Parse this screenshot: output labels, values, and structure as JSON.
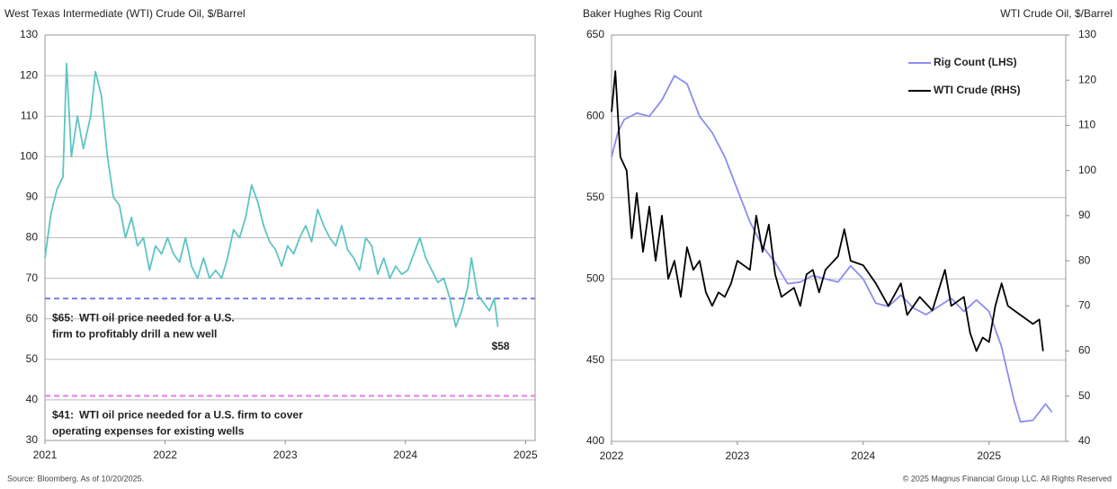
{
  "chart_data": [
    {
      "type": "line",
      "title": "West Texas Intermediate (WTI) Crude Oil, $/Barrel",
      "xlim": [
        2021,
        2025.08
      ],
      "xticks": [
        2021,
        2022,
        2023,
        2024,
        2025
      ],
      "ylim": [
        30,
        130
      ],
      "yticks": [
        30,
        40,
        50,
        60,
        70,
        80,
        90,
        100,
        110,
        120,
        130
      ],
      "grid": true,
      "series": [
        {
          "name": "WTI Crude",
          "color": "#5ec4c4",
          "x": [
            2021.0,
            2021.05,
            2021.1,
            2021.15,
            2021.18,
            2021.22,
            2021.27,
            2021.32,
            2021.38,
            2021.42,
            2021.47,
            2021.52,
            2021.57,
            2021.62,
            2021.67,
            2021.72,
            2021.77,
            2021.82,
            2021.87,
            2021.92,
            2021.97,
            2022.02,
            2022.07,
            2022.12,
            2022.17,
            2022.22,
            2022.27,
            2022.32,
            2022.37,
            2022.42,
            2022.47,
            2022.52,
            2022.57,
            2022.62,
            2022.67,
            2022.72,
            2022.77,
            2022.82,
            2022.87,
            2022.92,
            2022.97,
            2023.02,
            2023.07,
            2023.12,
            2023.17,
            2023.22,
            2023.27,
            2023.32,
            2023.37,
            2023.42,
            2023.47,
            2023.52,
            2023.57,
            2023.62,
            2023.67,
            2023.72,
            2023.77,
            2023.82,
            2023.87,
            2023.92,
            2023.97,
            2024.02,
            2024.07,
            2024.12,
            2024.17,
            2024.22,
            2024.27,
            2024.32,
            2024.37,
            2024.42,
            2024.47,
            2024.52,
            2024.55,
            2024.6,
            2024.65,
            2024.7,
            2024.74,
            2024.77
          ],
          "values": [
            75,
            86,
            92,
            95,
            123,
            100,
            110,
            102,
            110,
            121,
            115,
            100,
            90,
            88,
            80,
            85,
            78,
            80,
            72,
            78,
            76,
            80,
            76,
            74,
            80,
            73,
            70,
            75,
            70,
            72,
            70,
            75,
            82,
            80,
            85,
            93,
            89,
            83,
            79,
            77,
            73,
            78,
            76,
            80,
            83,
            79,
            87,
            83,
            80,
            78,
            83,
            77,
            75,
            72,
            80,
            78,
            71,
            75,
            70,
            73,
            71,
            72,
            76,
            80,
            75,
            72,
            69,
            70,
            65,
            58,
            62,
            68,
            75,
            66,
            64,
            62,
            65,
            58
          ]
        }
      ],
      "reference_lines": [
        {
          "value": 65,
          "label": "$65:",
          "color": "#7b7bea",
          "text": [
            "WTI oil price needed for a U.S.",
            "firm to profitably drill a new well"
          ]
        },
        {
          "value": 41,
          "label": "$41:",
          "color": "#e87ee8",
          "text": [
            "WTI oil price needed for a U.S. firm to cover",
            "operating expenses for existing wells"
          ]
        }
      ],
      "annotations": [
        {
          "value": 58,
          "label": "$58"
        }
      ]
    },
    {
      "type": "line",
      "title": "Baker Hughes Rig Count",
      "y2_title": "WTI Crude Oil, $/Barrel",
      "xlim": [
        2022,
        2025.61
      ],
      "xticks": [
        2022,
        2023,
        2024,
        2025
      ],
      "ylim": [
        400,
        650
      ],
      "yticks": [
        400,
        450,
        500,
        550,
        600,
        650
      ],
      "y2lim": [
        40,
        130
      ],
      "y2ticks": [
        40,
        50,
        60,
        70,
        80,
        90,
        100,
        110,
        120,
        130
      ],
      "grid": true,
      "legend": "upper-right",
      "series": [
        {
          "name": "Rig Count (LHS)",
          "color": "#8c8cf0",
          "x": [
            2022.0,
            2022.05,
            2022.1,
            2022.2,
            2022.3,
            2022.4,
            2022.5,
            2022.6,
            2022.7,
            2022.8,
            2022.9,
            2023.0,
            2023.1,
            2023.2,
            2023.3,
            2023.4,
            2023.5,
            2023.6,
            2023.7,
            2023.8,
            2023.9,
            2024.0,
            2024.1,
            2024.2,
            2024.3,
            2024.4,
            2024.5,
            2024.6,
            2024.7,
            2024.8,
            2024.9,
            2025.0,
            2025.1,
            2025.2,
            2025.25,
            2025.35,
            2025.45,
            2025.5
          ],
          "values": [
            575,
            590,
            598,
            602,
            600,
            610,
            625,
            620,
            600,
            590,
            575,
            555,
            535,
            520,
            510,
            497,
            498,
            502,
            500,
            498,
            508,
            500,
            485,
            483,
            490,
            482,
            478,
            483,
            488,
            480,
            487,
            480,
            458,
            425,
            412,
            413,
            423,
            418
          ]
        },
        {
          "name": "WTI Crude (RHS)",
          "color": "#000000",
          "axis": "y2",
          "x": [
            2022.0,
            2022.03,
            2022.07,
            2022.12,
            2022.16,
            2022.2,
            2022.25,
            2022.3,
            2022.35,
            2022.4,
            2022.45,
            2022.5,
            2022.55,
            2022.6,
            2022.65,
            2022.7,
            2022.75,
            2022.8,
            2022.85,
            2022.9,
            2022.95,
            2023.0,
            2023.1,
            2023.15,
            2023.2,
            2023.25,
            2023.3,
            2023.35,
            2023.45,
            2023.5,
            2023.55,
            2023.6,
            2023.65,
            2023.7,
            2023.8,
            2023.85,
            2023.9,
            2024.0,
            2024.1,
            2024.2,
            2024.3,
            2024.35,
            2024.45,
            2024.55,
            2024.65,
            2024.7,
            2024.8,
            2024.85,
            2024.9,
            2024.95,
            2025.0,
            2025.05,
            2025.1,
            2025.15,
            2025.25,
            2025.35,
            2025.4,
            2025.43
          ],
          "values": [
            113,
            122,
            103,
            100,
            85,
            95,
            82,
            92,
            80,
            90,
            76,
            80,
            72,
            83,
            78,
            80,
            73,
            70,
            73,
            72,
            75,
            80,
            78,
            90,
            82,
            88,
            77,
            72,
            74,
            70,
            77,
            78,
            73,
            78,
            81,
            87,
            80,
            79,
            75,
            70,
            75,
            68,
            72,
            69,
            78,
            70,
            72,
            64,
            60,
            63,
            62,
            70,
            75,
            70,
            68,
            66,
            67,
            60
          ]
        }
      ]
    }
  ],
  "footer": {
    "source": "Source: Bloomberg. As of 10/20/2025.",
    "copyright": "© 2025 Magnus Financial Group LLC. All Rights Reserved"
  }
}
